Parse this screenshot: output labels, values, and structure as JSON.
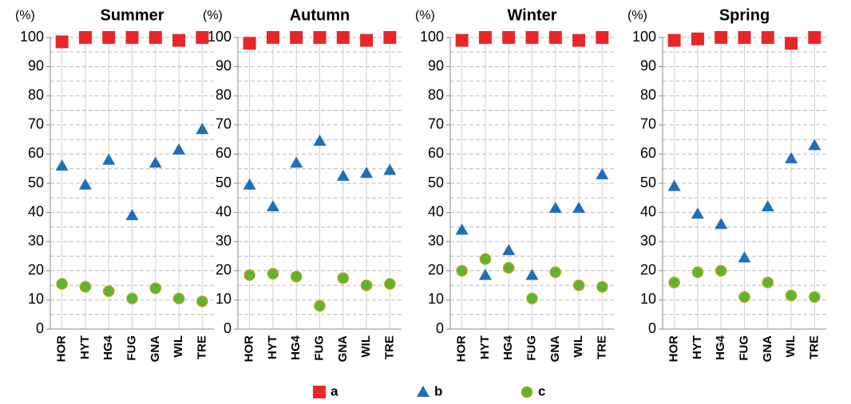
{
  "chart_data": [
    {
      "type": "scatter",
      "title": "Summer",
      "y_label": "(%)",
      "categories": [
        "HOR",
        "HYT",
        "HG4",
        "FUG",
        "GNA",
        "WIL",
        "TRE"
      ],
      "ylim": [
        0,
        100
      ],
      "yticks": [
        0,
        10,
        20,
        30,
        40,
        50,
        60,
        70,
        80,
        90,
        100
      ],
      "grid": true,
      "series": [
        {
          "name": "a",
          "color": "#e8262a",
          "marker": "square",
          "values": [
            98.5,
            100,
            100,
            100,
            100,
            99,
            100
          ]
        },
        {
          "name": "b",
          "color": "#1f6fb8",
          "marker": "triangle",
          "values": [
            56,
            49.5,
            58,
            39,
            57,
            61.5,
            68.5
          ]
        },
        {
          "name": "c",
          "color": "#5cb531",
          "marker": "circle",
          "values": [
            15.5,
            14.5,
            13,
            10.5,
            14,
            10.5,
            9.5
          ]
        }
      ]
    },
    {
      "type": "scatter",
      "title": "Autumn",
      "y_label": "(%)",
      "categories": [
        "HOR",
        "HYT",
        "HG4",
        "FUG",
        "GNA",
        "WIL",
        "TRE"
      ],
      "ylim": [
        0,
        100
      ],
      "yticks": [
        0,
        10,
        20,
        30,
        40,
        50,
        60,
        70,
        80,
        90,
        100
      ],
      "grid": true,
      "series": [
        {
          "name": "a",
          "color": "#e8262a",
          "marker": "square",
          "values": [
            98,
            100,
            100,
            100,
            100,
            99,
            100
          ]
        },
        {
          "name": "b",
          "color": "#1f6fb8",
          "marker": "triangle",
          "values": [
            49.5,
            42,
            57,
            64.5,
            52.5,
            53.5,
            54.5
          ]
        },
        {
          "name": "c",
          "color": "#5cb531",
          "marker": "circle",
          "values": [
            18.5,
            19,
            18,
            8,
            17.5,
            15,
            15.5
          ]
        }
      ]
    },
    {
      "type": "scatter",
      "title": "Winter",
      "y_label": "(%)",
      "categories": [
        "HOR",
        "HYT",
        "HG4",
        "FUG",
        "GNA",
        "WIL",
        "TRE"
      ],
      "ylim": [
        0,
        100
      ],
      "yticks": [
        0,
        10,
        20,
        30,
        40,
        50,
        60,
        70,
        80,
        90,
        100
      ],
      "grid": true,
      "series": [
        {
          "name": "a",
          "color": "#e8262a",
          "marker": "square",
          "values": [
            99,
            100,
            100,
            100,
            100,
            99,
            100
          ]
        },
        {
          "name": "b",
          "color": "#1f6fb8",
          "marker": "triangle",
          "values": [
            34,
            18.5,
            27,
            18.5,
            41.5,
            41.5,
            53
          ]
        },
        {
          "name": "c",
          "color": "#5cb531",
          "marker": "circle",
          "values": [
            20,
            24,
            21,
            10.5,
            19.5,
            15,
            14.5
          ]
        }
      ]
    },
    {
      "type": "scatter",
      "title": "Spring",
      "y_label": "(%)",
      "categories": [
        "HOR",
        "HYT",
        "HG4",
        "FUG",
        "GNA",
        "WIL",
        "TRE"
      ],
      "ylim": [
        0,
        100
      ],
      "yticks": [
        0,
        10,
        20,
        30,
        40,
        50,
        60,
        70,
        80,
        90,
        100
      ],
      "grid": true,
      "series": [
        {
          "name": "a",
          "color": "#e8262a",
          "marker": "square",
          "values": [
            99,
            99.5,
            100,
            100,
            100,
            98,
            100
          ]
        },
        {
          "name": "b",
          "color": "#1f6fb8",
          "marker": "triangle",
          "values": [
            49,
            39.5,
            36,
            24.5,
            42,
            58.5,
            63
          ]
        },
        {
          "name": "c",
          "color": "#5cb531",
          "marker": "circle",
          "values": [
            16,
            19.5,
            20,
            11,
            16,
            11.5,
            11
          ]
        }
      ]
    }
  ]
}
